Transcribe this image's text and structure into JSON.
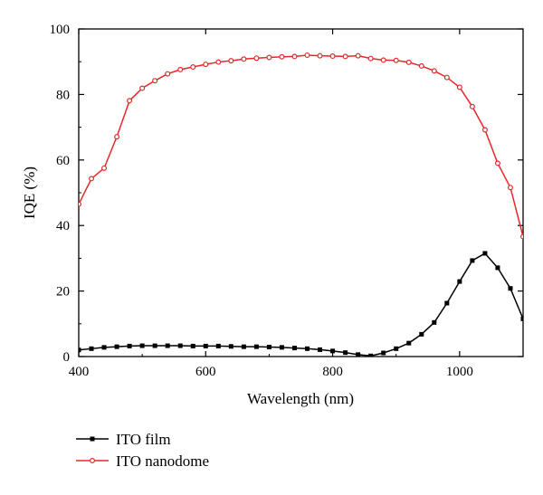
{
  "chart_data": {
    "type": "line",
    "title": "",
    "xlabel": "Wavelength (nm)",
    "ylabel": "IQE (%)",
    "xlim": [
      400,
      1100
    ],
    "ylim": [
      0,
      100
    ],
    "xticks": [
      400,
      600,
      800,
      1000
    ],
    "yticks": [
      0,
      20,
      40,
      60,
      80,
      100
    ],
    "grid": false,
    "legend_position": "bottom-left, below plot",
    "series": [
      {
        "name": "ITO film",
        "color": "#000000",
        "marker": "square",
        "x": [
          400,
          420,
          440,
          460,
          480,
          500,
          520,
          540,
          560,
          580,
          600,
          620,
          640,
          660,
          680,
          700,
          720,
          740,
          760,
          780,
          800,
          820,
          840,
          860,
          880,
          900,
          920,
          940,
          960,
          980,
          1000,
          1020,
          1040,
          1060,
          1080,
          1100
        ],
        "y": [
          2.0,
          2.4,
          2.8,
          3.0,
          3.2,
          3.3,
          3.3,
          3.3,
          3.3,
          3.2,
          3.2,
          3.2,
          3.1,
          3.0,
          3.0,
          2.9,
          2.8,
          2.6,
          2.4,
          2.1,
          1.7,
          1.2,
          0.6,
          0.2,
          1.1,
          2.4,
          4.1,
          6.8,
          10.4,
          16.3,
          22.9,
          29.3,
          31.5,
          27.1,
          20.8,
          11.5
        ]
      },
      {
        "name": "ITO nanodome",
        "color": "#e8262a",
        "marker": "circle",
        "x": [
          400,
          420,
          440,
          460,
          480,
          500,
          520,
          540,
          560,
          580,
          600,
          620,
          640,
          660,
          680,
          700,
          720,
          740,
          760,
          780,
          800,
          820,
          840,
          860,
          880,
          900,
          920,
          940,
          960,
          980,
          1000,
          1020,
          1040,
          1060,
          1080,
          1100
        ],
        "y": [
          46.5,
          54.3,
          57.5,
          67.1,
          78.1,
          81.9,
          84.2,
          86.3,
          87.6,
          88.4,
          89.2,
          89.9,
          90.3,
          90.8,
          91.1,
          91.3,
          91.5,
          91.6,
          92.0,
          91.8,
          91.7,
          91.6,
          91.8,
          91.0,
          90.5,
          90.4,
          89.8,
          88.7,
          87.2,
          85.2,
          82.2,
          76.3,
          69.2,
          59.0,
          51.6,
          36.6
        ]
      }
    ]
  }
}
